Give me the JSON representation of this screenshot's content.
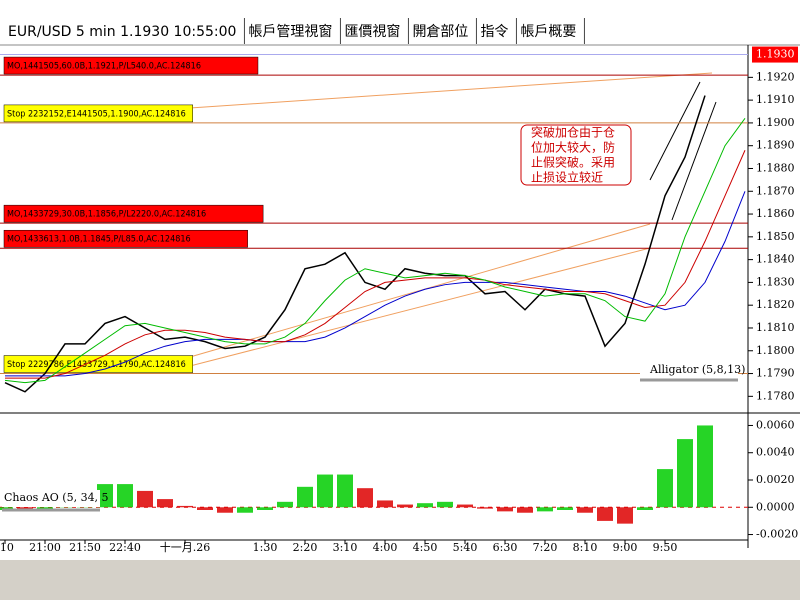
{
  "tabs": [
    "EUR/USD 5 min 1.1930 10:55:00",
    "帳戶管理視窗",
    "匯價視窗",
    "開倉部位",
    "指令",
    "帳戶概要"
  ],
  "chart_data": [
    {
      "type": "line",
      "title": "Alligator (5,8,13)",
      "categories": [
        ":10",
        null,
        "21:00",
        null,
        "21:50",
        null,
        "22:40",
        null,
        null,
        "十一月.26",
        null,
        null,
        null,
        "1:30",
        null,
        "2:20",
        null,
        "3:10",
        null,
        "4:00",
        null,
        "4:50",
        null,
        "5:40",
        null,
        "6:30",
        null,
        "7:20",
        null,
        "8:10",
        null,
        "9:00",
        null,
        "9:50",
        null,
        null,
        null,
        null
      ],
      "series": [
        {
          "color": "#000000",
          "values": [
            1.1786,
            1.1782,
            1.179,
            1.1803,
            1.1803,
            1.1812,
            1.1815,
            1.181,
            1.1805,
            1.1806,
            1.1804,
            1.1801,
            1.1802,
            1.1806,
            1.1818,
            1.1836,
            1.1838,
            1.1843,
            1.183,
            1.1827,
            1.1836,
            1.1834,
            1.1833,
            1.1833,
            1.1825,
            1.1826,
            1.1818,
            1.1827,
            1.1825,
            1.1824,
            1.1802,
            1.1812,
            1.1838,
            1.1868,
            1.1885,
            1.1912,
            null,
            null
          ]
        },
        {
          "color": "#0000cc",
          "values": [
            1.1789,
            1.1789,
            1.1789,
            1.1789,
            1.179,
            1.1792,
            1.1795,
            1.1799,
            1.1802,
            1.1804,
            1.1805,
            1.1805,
            1.1805,
            1.1804,
            1.1804,
            1.1804,
            1.1806,
            1.181,
            1.1815,
            1.182,
            1.1824,
            1.1827,
            1.1829,
            1.183,
            1.183,
            1.183,
            1.1829,
            1.1828,
            1.1827,
            1.1826,
            1.1826,
            1.1824,
            1.1821,
            1.1818,
            1.182,
            1.183,
            1.1848,
            1.187
          ]
        },
        {
          "color": "#cc0000",
          "values": [
            1.1788,
            1.1788,
            1.1788,
            1.179,
            1.1794,
            1.1798,
            1.1803,
            1.1807,
            1.1809,
            1.1809,
            1.1808,
            1.1806,
            1.1805,
            1.1804,
            1.1804,
            1.1807,
            1.1812,
            1.1819,
            1.1826,
            1.183,
            1.1831,
            1.1832,
            1.1832,
            1.1832,
            1.1831,
            1.1829,
            1.1828,
            1.1827,
            1.1826,
            1.1826,
            1.1825,
            1.1822,
            1.1819,
            1.182,
            1.183,
            1.1848,
            1.1868,
            1.1888
          ]
        },
        {
          "color": "#00bb00",
          "values": [
            1.1787,
            1.1786,
            1.1787,
            1.1793,
            1.1799,
            1.1805,
            1.1811,
            1.1812,
            1.181,
            1.1808,
            1.1806,
            1.1804,
            1.1803,
            1.1803,
            1.1806,
            1.1812,
            1.1822,
            1.1831,
            1.1836,
            1.1834,
            1.1832,
            1.1833,
            1.1834,
            1.1833,
            1.1831,
            1.1828,
            1.1826,
            1.1824,
            1.1825,
            1.1825,
            1.1822,
            1.1815,
            1.1813,
            1.1825,
            1.185,
            1.187,
            1.189,
            1.1902
          ]
        }
      ],
      "ylim": [
        1.1774,
        1.1932
      ],
      "yticks": [
        {
          "value": 1.192,
          "label": "1.1920"
        },
        {
          "value": 1.191,
          "label": "1.1910"
        },
        {
          "value": 1.19,
          "label": "1.1900"
        },
        {
          "value": 1.189,
          "label": "1.1890"
        },
        {
          "value": 1.188,
          "label": "1.1880"
        },
        {
          "value": 1.187,
          "label": "1.1870"
        },
        {
          "value": 1.186,
          "label": "1.1860"
        },
        {
          "value": 1.185,
          "label": "1.1850"
        },
        {
          "value": 1.184,
          "label": "1.1840"
        },
        {
          "value": 1.183,
          "label": "1.1830"
        },
        {
          "value": 1.182,
          "label": "1.1820"
        },
        {
          "value": 1.181,
          "label": "1.1810"
        },
        {
          "value": 1.18,
          "label": "1.1800"
        },
        {
          "value": 1.179,
          "label": "1.1790"
        },
        {
          "value": 1.178,
          "label": "1.1780"
        }
      ],
      "last_price": {
        "value": 1.193,
        "label": "1.1930"
      },
      "levels": [
        {
          "label": "MO,1441505,60.0B,1.1921,P/L540.0,AC.124816",
          "value": 1.1921,
          "color": "#ff0000"
        },
        {
          "label": "Stop 2232152,E1441505,1.1900,AC.124816",
          "value": 1.19,
          "color": "#ffff00"
        },
        {
          "label": "MO,1433729,30.0B,1.1856,P/L2220.0,AC.124816",
          "value": 1.1856,
          "color": "#ff0000"
        },
        {
          "label": "MO,1433613,1.0B,1.1845,P/L85.0,AC.124816",
          "value": 1.1845,
          "color": "#ff0000"
        },
        {
          "label": "Stop 2229786,E1433729,1.1790,AC.124816",
          "value": 1.179,
          "color": "#ffff00"
        }
      ],
      "annotation": [
        "突破加仓由于仓",
        "位加大较大，防",
        "止假突破。采用",
        "止损设立较近"
      ]
    },
    {
      "type": "bar",
      "title": "Chaos AO (5, 34, 5",
      "values": [
        -0.0002,
        -0.0003,
        -0.0001,
        0.0005,
        0.0012,
        0.0017,
        0.0017,
        0.0012,
        0.0006,
        0.0001,
        -0.0002,
        -0.0004,
        -0.0004,
        -0.0002,
        0.0004,
        0.0015,
        0.0024,
        0.0024,
        0.0014,
        0.0005,
        0.0002,
        0.0003,
        0.0004,
        0.0002,
        -0.0001,
        -0.0003,
        -0.0004,
        -0.0003,
        -0.0002,
        -0.0004,
        -0.001,
        -0.0012,
        -0.0002,
        0.0028,
        0.005,
        0.006
      ],
      "up_color": "#00cc00",
      "down_color": "#dd0000",
      "ylim": [
        -0.0024,
        0.0064
      ],
      "yticks": [
        {
          "value": 0.006,
          "label": "0.0060"
        },
        {
          "value": 0.004,
          "label": "0.0040"
        },
        {
          "value": 0.002,
          "label": "0.0020"
        },
        {
          "value": 0,
          "label": "0.0000"
        },
        {
          "value": -0.002,
          "label": "-0.0020"
        }
      ]
    }
  ]
}
